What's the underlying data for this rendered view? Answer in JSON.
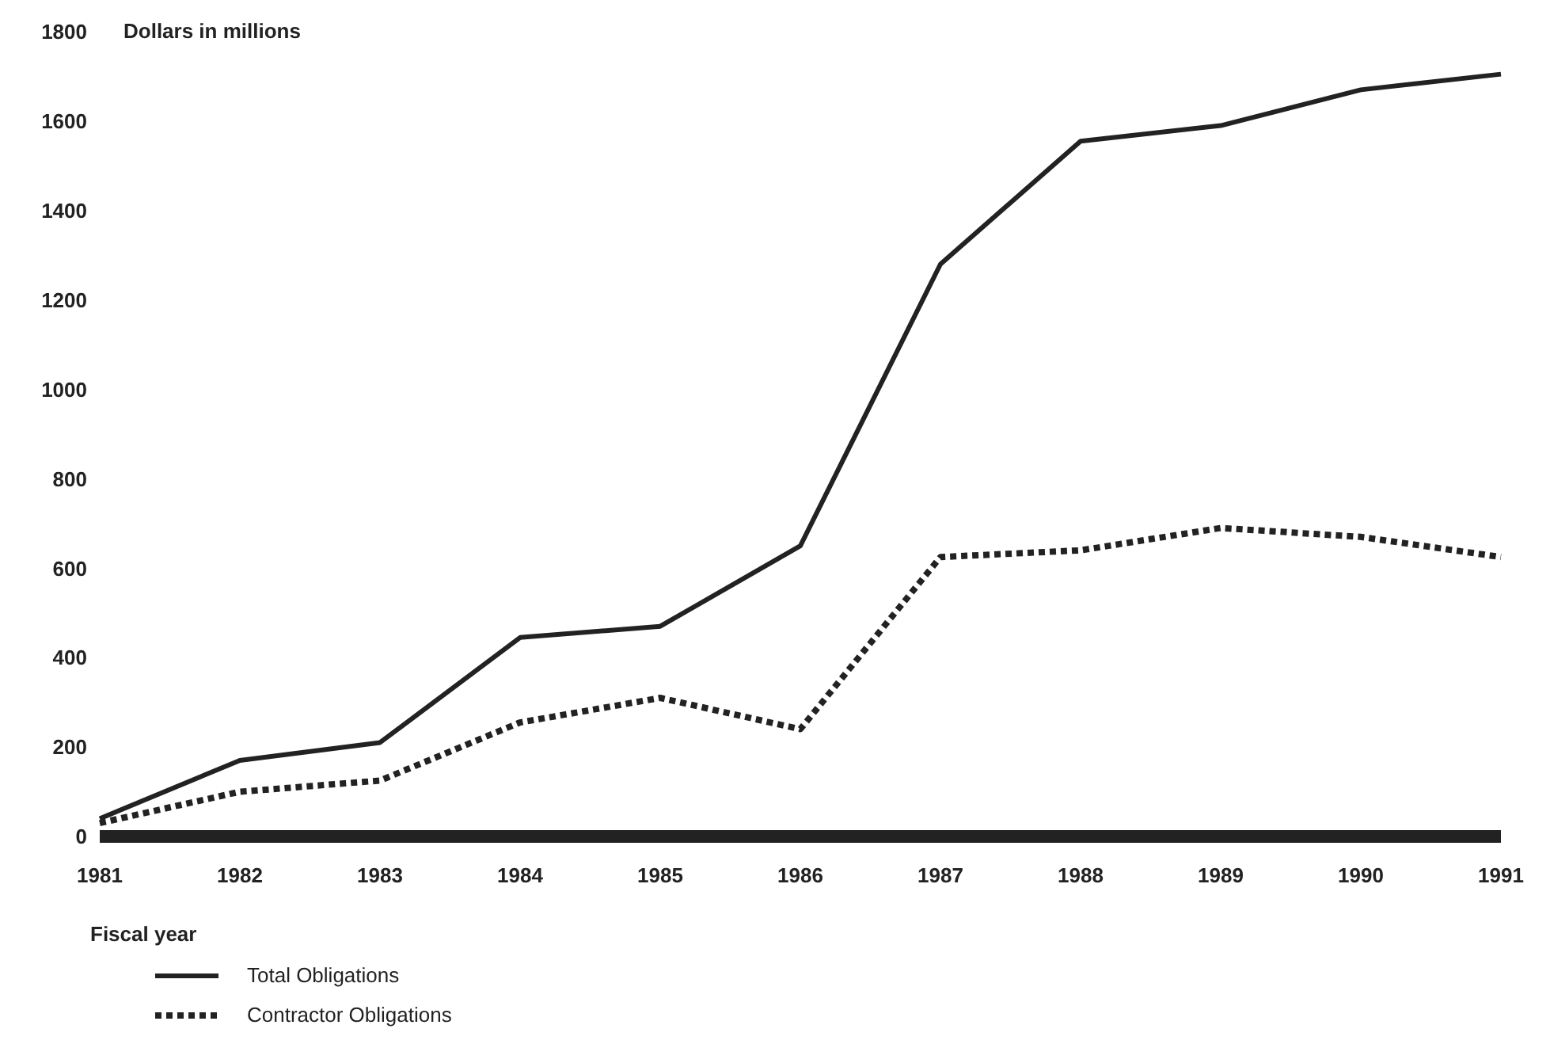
{
  "chart_data": {
    "type": "line",
    "ylabel": "Dollars in millions",
    "xlabel": "Fiscal year",
    "categories": [
      "1981",
      "1982",
      "1983",
      "1984",
      "1985",
      "1986",
      "1987",
      "1988",
      "1989",
      "1990",
      "1991"
    ],
    "series": [
      {
        "name": "Total Obligations",
        "color": "#222222",
        "line_style": "solid",
        "values": [
          40,
          170,
          210,
          445,
          470,
          650,
          1280,
          1555,
          1590,
          1670,
          1705
        ]
      },
      {
        "name": "Contractor Obligations",
        "color": "#222222",
        "line_style": "dotted",
        "values": [
          30,
          100,
          125,
          255,
          310,
          240,
          625,
          640,
          690,
          670,
          625
        ]
      }
    ],
    "ylim": [
      0,
      1800
    ],
    "yticks": [
      0,
      200,
      400,
      600,
      800,
      1000,
      1200,
      1400,
      1600,
      1800
    ],
    "grid": false,
    "legend": "bottom left",
    "marker": "none"
  }
}
